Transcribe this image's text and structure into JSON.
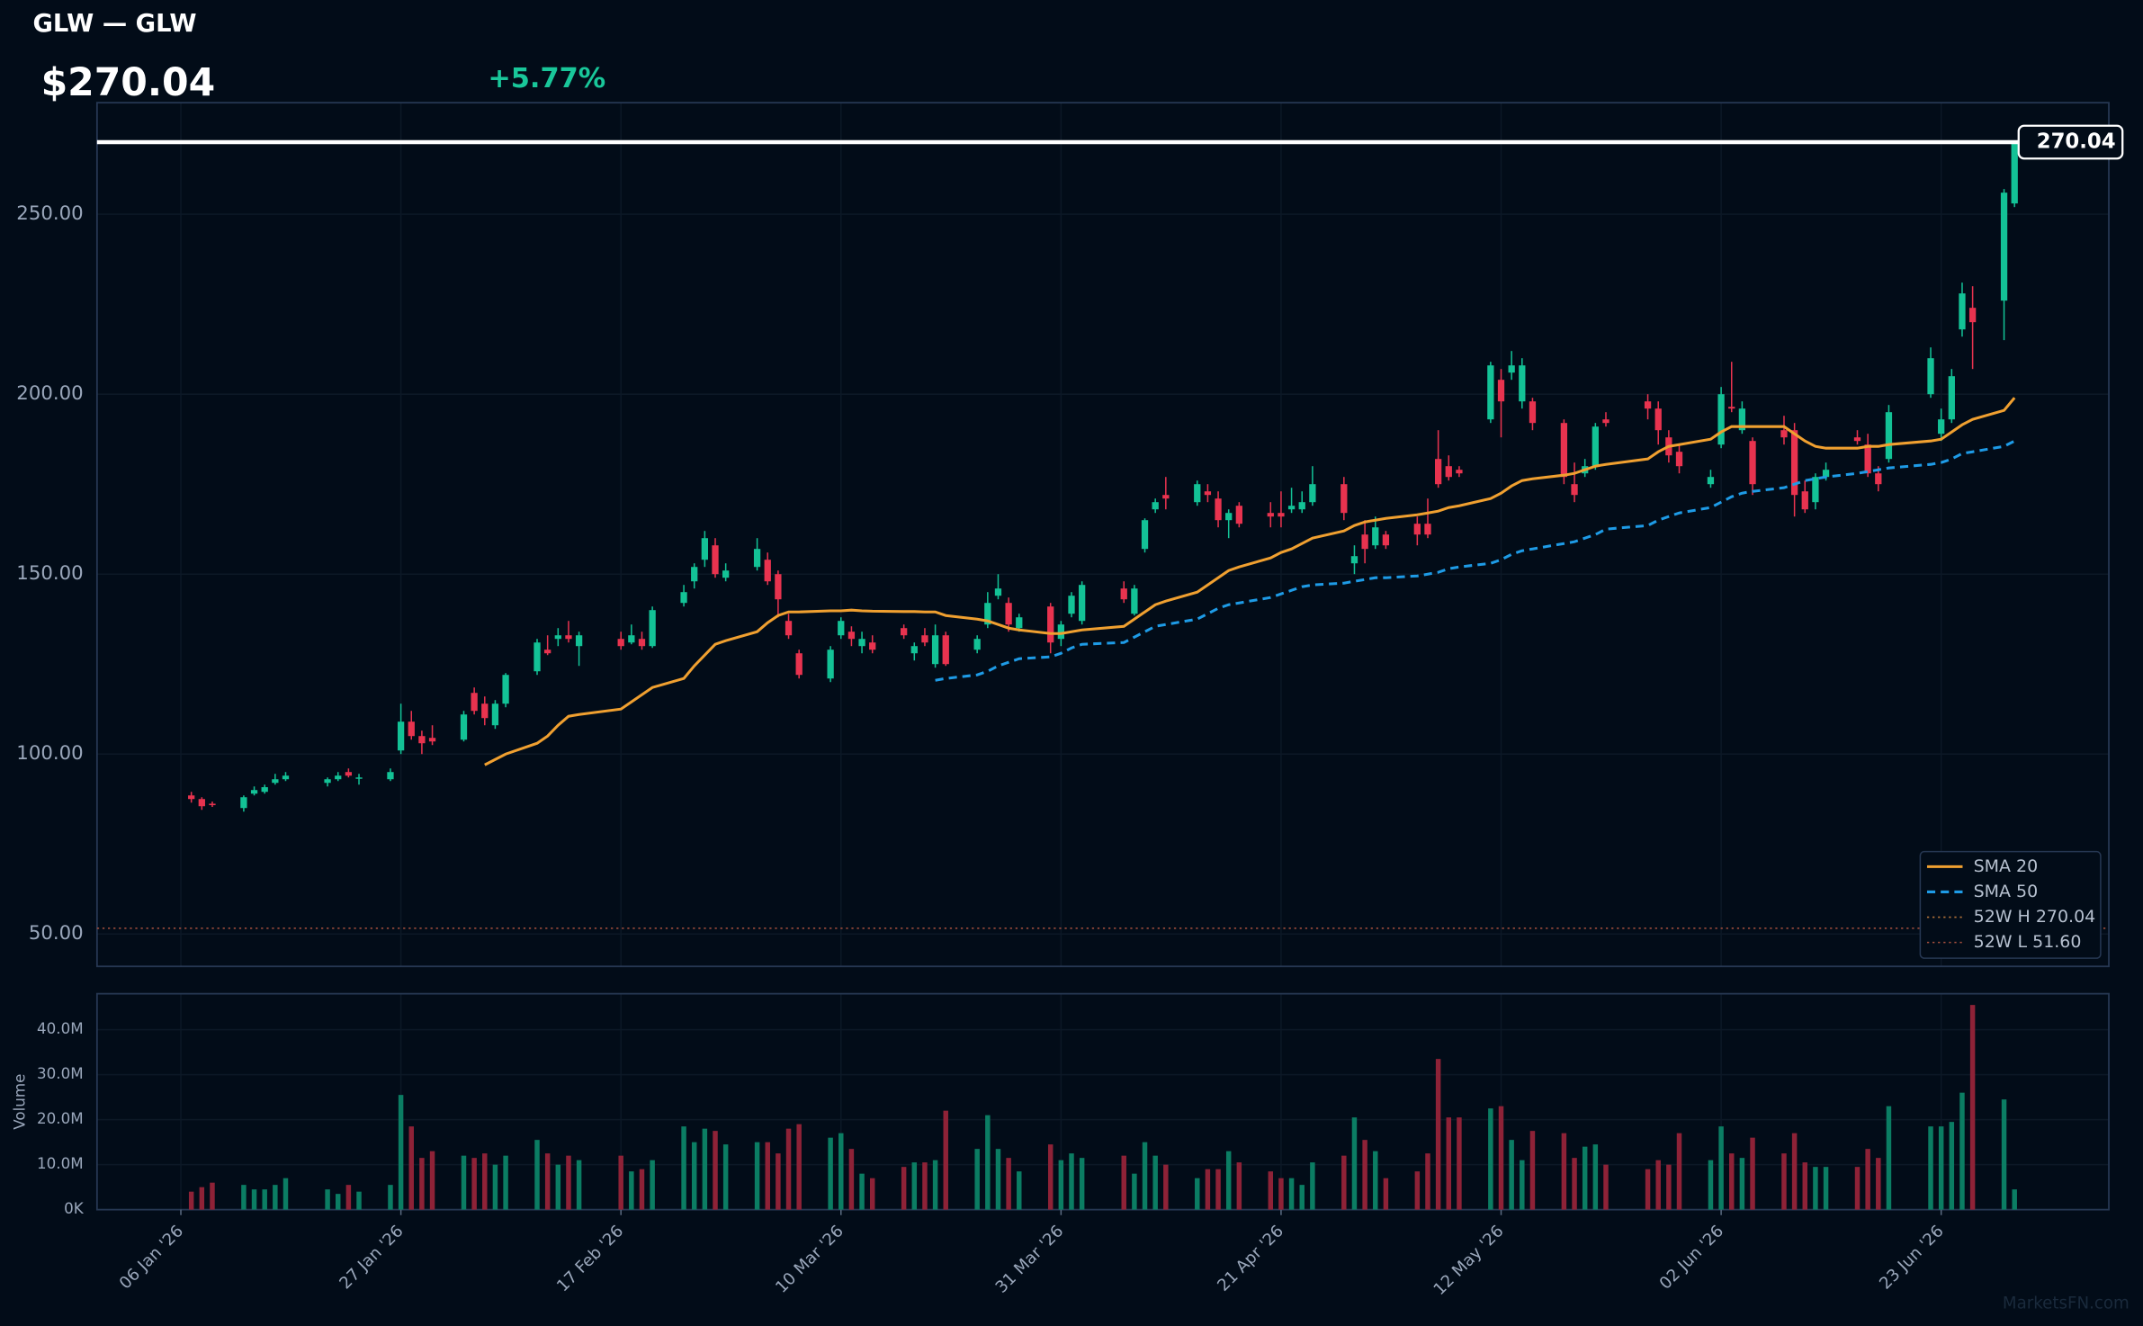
{
  "header": {
    "title": "GLW — GLW",
    "price": "$270.04",
    "change": {
      "value": 5.77,
      "label": "+5.77%"
    }
  },
  "watermark": "MarketsFN.com",
  "chart_data": {
    "type": "candlestick",
    "x": [
      "2026-01-07",
      "2026-01-08",
      "2026-01-09",
      "2026-01-12",
      "2026-01-13",
      "2026-01-14",
      "2026-01-15",
      "2026-01-16",
      "2026-01-20",
      "2026-01-21",
      "2026-01-22",
      "2026-01-23",
      "2026-01-26",
      "2026-01-27",
      "2026-01-28",
      "2026-01-29",
      "2026-01-30",
      "2026-02-02",
      "2026-02-03",
      "2026-02-04",
      "2026-02-05",
      "2026-02-06",
      "2026-02-09",
      "2026-02-10",
      "2026-02-11",
      "2026-02-12",
      "2026-02-13",
      "2026-02-17",
      "2026-02-18",
      "2026-02-19",
      "2026-02-20",
      "2026-02-23",
      "2026-02-24",
      "2026-02-25",
      "2026-02-26",
      "2026-02-27",
      "2026-03-02",
      "2026-03-03",
      "2026-03-04",
      "2026-03-05",
      "2026-03-06",
      "2026-03-09",
      "2026-03-10",
      "2026-03-11",
      "2026-03-12",
      "2026-03-13",
      "2026-03-16",
      "2026-03-17",
      "2026-03-18",
      "2026-03-19",
      "2026-03-20",
      "2026-03-23",
      "2026-03-24",
      "2026-03-25",
      "2026-03-26",
      "2026-03-27",
      "2026-03-30",
      "2026-03-31",
      "2026-04-01",
      "2026-04-02",
      "2026-04-06",
      "2026-04-07",
      "2026-04-08",
      "2026-04-09",
      "2026-04-10",
      "2026-04-13",
      "2026-04-14",
      "2026-04-15",
      "2026-04-16",
      "2026-04-17",
      "2026-04-20",
      "2026-04-21",
      "2026-04-22",
      "2026-04-23",
      "2026-04-24",
      "2026-04-27",
      "2026-04-28",
      "2026-04-29",
      "2026-04-30",
      "2026-05-01",
      "2026-05-04",
      "2026-05-05",
      "2026-05-06",
      "2026-05-07",
      "2026-05-08",
      "2026-05-11",
      "2026-05-12",
      "2026-05-13",
      "2026-05-14",
      "2026-05-15",
      "2026-05-18",
      "2026-05-19",
      "2026-05-20",
      "2026-05-21",
      "2026-05-22",
      "2026-05-26",
      "2026-05-27",
      "2026-05-28",
      "2026-05-29",
      "2026-06-01",
      "2026-06-02",
      "2026-06-03",
      "2026-06-04",
      "2026-06-05",
      "2026-06-08",
      "2026-06-09",
      "2026-06-10",
      "2026-06-11",
      "2026-06-12",
      "2026-06-15",
      "2026-06-16",
      "2026-06-17",
      "2026-06-18",
      "2026-06-22",
      "2026-06-23",
      "2026-06-24",
      "2026-06-25",
      "2026-06-26",
      "2026-06-29",
      "2026-06-30"
    ],
    "open": [
      88.5,
      87.5,
      86.2,
      85,
      89,
      89.5,
      92,
      93,
      92,
      93,
      95,
      93.2,
      93,
      101,
      109,
      105,
      104.5,
      104,
      117,
      114,
      108,
      114,
      123,
      129,
      132,
      133,
      130,
      132,
      131,
      132,
      130,
      142,
      148,
      154,
      158,
      149,
      152,
      154,
      150,
      137,
      128,
      121,
      133,
      134,
      130,
      131,
      135,
      128,
      133,
      125,
      133,
      129,
      136,
      144,
      142,
      135,
      141,
      132,
      139,
      137,
      146,
      139,
      157,
      168,
      172,
      170,
      173,
      171,
      165,
      169,
      167,
      167,
      168,
      168,
      170,
      175,
      153,
      161,
      158,
      161,
      164,
      164,
      182,
      180,
      179,
      193,
      204,
      206,
      198,
      198,
      192,
      175,
      178,
      180,
      193,
      198,
      196,
      188,
      184,
      175,
      186,
      196.5,
      190,
      187,
      190,
      190,
      173,
      170,
      177,
      188,
      186,
      178,
      182,
      200,
      189,
      193,
      218,
      224,
      226,
      253
    ],
    "high": [
      89.5,
      88,
      86.8,
      88.5,
      91,
      91.5,
      94.5,
      95,
      93.5,
      95,
      96,
      94.5,
      96,
      114,
      112,
      106.5,
      108,
      112,
      118.5,
      116,
      115,
      122.5,
      132,
      133,
      135,
      137,
      134,
      134,
      136,
      134,
      141,
      147,
      153,
      162,
      160,
      153,
      160,
      156,
      151,
      139,
      129,
      130,
      138,
      135.5,
      134,
      133,
      136,
      131,
      135,
      136,
      134,
      133,
      145,
      150,
      143.5,
      139,
      142,
      137,
      145,
      148,
      148,
      147,
      165.5,
      171,
      177,
      176,
      175,
      173,
      168,
      170,
      170,
      173,
      174,
      173,
      180,
      177,
      158,
      165,
      166,
      162,
      166,
      171,
      190,
      183,
      180,
      209,
      207,
      212,
      210,
      199,
      193,
      181,
      182,
      192,
      195,
      200,
      198,
      190,
      186,
      179,
      202,
      209,
      198,
      188,
      194,
      192,
      176,
      178,
      181,
      190,
      189,
      180,
      197,
      213,
      196,
      207,
      231,
      230,
      257,
      270.04
    ],
    "low": [
      86.5,
      84.5,
      85.3,
      84,
      88.5,
      89,
      91.5,
      92.5,
      91,
      92.5,
      93.5,
      91.5,
      92.5,
      100,
      104,
      100,
      102.5,
      103.5,
      111,
      108,
      107,
      113,
      122,
      127.5,
      130,
      131,
      124.5,
      129,
      130.5,
      129,
      129.5,
      141,
      146,
      152,
      149,
      148,
      151,
      147,
      138,
      132,
      121,
      120,
      132,
      130,
      128,
      128,
      132,
      126,
      130,
      124,
      124.5,
      128,
      135,
      143,
      134,
      134,
      128,
      130,
      138,
      136,
      142,
      138.5,
      156,
      167,
      168,
      169,
      170,
      163,
      160,
      163,
      163,
      163,
      167,
      167,
      169,
      165,
      150,
      153,
      157,
      157,
      158,
      160,
      174,
      176,
      177,
      192,
      188,
      204,
      196,
      190,
      175,
      170,
      177,
      179,
      191,
      193,
      186,
      181,
      178,
      174,
      185,
      195,
      189,
      172,
      186,
      166,
      167,
      168,
      176,
      186,
      177,
      173,
      181,
      199,
      187,
      192,
      216,
      207,
      215,
      252
    ],
    "close": [
      87.5,
      85.5,
      85.8,
      88,
      90,
      90.8,
      93,
      94,
      93,
      94,
      94,
      93.5,
      95,
      109,
      105,
      103,
      103.5,
      111,
      112,
      110,
      114,
      122,
      131,
      128,
      133,
      132,
      133,
      130,
      133,
      130,
      140,
      145,
      152,
      160,
      150,
      151,
      157,
      148,
      143,
      133,
      122,
      129,
      137,
      132,
      132,
      129,
      133,
      130,
      131,
      133,
      125,
      132,
      142,
      146,
      136,
      138,
      131,
      136,
      144,
      147,
      143,
      146,
      165,
      170,
      171,
      175,
      172,
      165,
      167,
      164,
      166,
      166,
      169,
      170,
      175,
      167,
      155,
      157,
      163,
      158,
      161,
      161,
      175,
      177,
      178,
      208,
      198,
      208,
      208,
      192,
      177,
      172,
      180,
      191,
      192,
      196,
      190,
      183,
      180,
      177,
      200,
      196,
      196,
      175,
      188,
      172,
      168,
      177,
      179,
      187,
      178,
      175,
      195,
      210,
      193,
      205,
      228,
      220,
      256,
      270.04
    ],
    "up_color": "#13c296",
    "down_color": "#e8334f",
    "xlim": [
      "2025-12-29",
      "2026-07-09"
    ],
    "xticks": [
      {
        "value": "2026-01-06",
        "label": "06 Jan '26"
      },
      {
        "value": "2026-01-27",
        "label": "27 Jan '26"
      },
      {
        "value": "2026-02-17",
        "label": "17 Feb '26"
      },
      {
        "value": "2026-03-10",
        "label": "10 Mar '26"
      },
      {
        "value": "2026-03-31",
        "label": "31 Mar '26"
      },
      {
        "value": "2026-04-21",
        "label": "21 Apr '26"
      },
      {
        "value": "2026-05-12",
        "label": "12 May '26"
      },
      {
        "value": "2026-06-02",
        "label": "02 Jun '26"
      },
      {
        "value": "2026-06-23",
        "label": "23 Jun '26"
      }
    ],
    "ylim": [
      41,
      281
    ],
    "yticks": [
      {
        "value": 50,
        "label": "50.00"
      },
      {
        "value": 100,
        "label": "100.00"
      },
      {
        "value": 150,
        "label": "150.00"
      },
      {
        "value": 200,
        "label": "200.00"
      },
      {
        "value": 250,
        "label": "250.00"
      }
    ],
    "grid": true,
    "legend": "lower right",
    "series": [
      {
        "name": "SMA 20",
        "color": "#f0a030",
        "style": "solid",
        "values": [
          null,
          null,
          null,
          null,
          null,
          null,
          null,
          null,
          null,
          null,
          null,
          null,
          null,
          null,
          null,
          null,
          null,
          null,
          null,
          97,
          98.5,
          100,
          103,
          105,
          108,
          110.5,
          111,
          112.5,
          114.5,
          116.5,
          118.5,
          121,
          124.5,
          127.5,
          130.5,
          131.5,
          134,
          136.5,
          138.5,
          139.5,
          139.5,
          139.8,
          139.8,
          140,
          139.8,
          139.7,
          139.6,
          139.6,
          139.5,
          139.5,
          138.5,
          137.5,
          137,
          136,
          135,
          134.5,
          133.5,
          133.5,
          134,
          134.5,
          135.5,
          137.5,
          139.5,
          141.5,
          142.5,
          145,
          147,
          149,
          151,
          152,
          154.5,
          156,
          157,
          158.5,
          160,
          162,
          163.5,
          164.5,
          165,
          165.5,
          166.5,
          167,
          167.5,
          168.5,
          169,
          171,
          172.5,
          174.5,
          176,
          176.5,
          177.5,
          178,
          179,
          180,
          180.5,
          182,
          184,
          185.5,
          186,
          187.5,
          189.5,
          191,
          191,
          191,
          191,
          189,
          187,
          185.5,
          185,
          185,
          185.5,
          185.5,
          186,
          187,
          187.5,
          189.5,
          191.5,
          193,
          195.5,
          199
        ]
      },
      {
        "name": "SMA 50",
        "color": "#1e9be6",
        "style": "dashed",
        "values": [
          null,
          null,
          null,
          null,
          null,
          null,
          null,
          null,
          null,
          null,
          null,
          null,
          null,
          null,
          null,
          null,
          null,
          null,
          null,
          null,
          null,
          null,
          null,
          null,
          null,
          null,
          null,
          null,
          null,
          null,
          null,
          null,
          null,
          null,
          null,
          null,
          null,
          null,
          null,
          null,
          null,
          null,
          null,
          null,
          null,
          null,
          null,
          null,
          null,
          120.5,
          121,
          122,
          123,
          124.5,
          125.5,
          126.5,
          127,
          128,
          129.5,
          130.5,
          131,
          132.5,
          134,
          135.5,
          136,
          137.5,
          139,
          140.5,
          141.5,
          142,
          143.5,
          144.5,
          145.5,
          146.5,
          147,
          147.5,
          148,
          148.5,
          149,
          149,
          149.5,
          150,
          150.5,
          151.5,
          152,
          153,
          154,
          155.5,
          156.5,
          157,
          158.5,
          159,
          160,
          161,
          162.5,
          163.5,
          165,
          166,
          167,
          168.5,
          170,
          171.5,
          172.5,
          173,
          174,
          175,
          176,
          176.5,
          177,
          178,
          178.5,
          179,
          179.5,
          180.5,
          181,
          182,
          183.5,
          184,
          185.5,
          187
        ]
      }
    ],
    "levels": [
      {
        "name": "52W H 270.04",
        "value": 270.04,
        "color": "#b5743a"
      },
      {
        "name": "52W L 51.60",
        "value": 51.6,
        "color": "#a8503e"
      }
    ],
    "last_price": 270.04,
    "volume": {
      "ylabel": "Volume",
      "up_color": "#0b7d63",
      "down_color": "#8e2237",
      "values": [
        4000000,
        5000000,
        6000000,
        5500000,
        4500000,
        4500000,
        5500000,
        7000000,
        4500000,
        3500000,
        5500000,
        4000000,
        5500000,
        25500000,
        18500000,
        11500000,
        13000000,
        12000000,
        11500000,
        12500000,
        10000000,
        12000000,
        15500000,
        12500000,
        10000000,
        12000000,
        11000000,
        12000000,
        8500000,
        9000000,
        11000000,
        18500000,
        15000000,
        18000000,
        17500000,
        14500000,
        15000000,
        15000000,
        12500000,
        18000000,
        19000000,
        16000000,
        17000000,
        13500000,
        8000000,
        7000000,
        9500000,
        10500000,
        10500000,
        11000000,
        22000000,
        13500000,
        21000000,
        13500000,
        11500000,
        8500000,
        14500000,
        11000000,
        12500000,
        11500000,
        12000000,
        8000000,
        15000000,
        12000000,
        10000000,
        7000000,
        9000000,
        9000000,
        13000000,
        10500000,
        8500000,
        7000000,
        7000000,
        5500000,
        10500000,
        12000000,
        20500000,
        15500000,
        13000000,
        7000000,
        8500000,
        12500000,
        33500000,
        20500000,
        20500000,
        22500000,
        23000000,
        15500000,
        11000000,
        17500000,
        17000000,
        11500000,
        14000000,
        14500000,
        10000000,
        9000000,
        11000000,
        10000000,
        17000000,
        11000000,
        18500000,
        12500000,
        11500000,
        16000000,
        12500000,
        17000000,
        10500000,
        9500000,
        9500000,
        9500000,
        13500000,
        11500000,
        23000000,
        18500000,
        18500000,
        19500000,
        26000000,
        45500000,
        24500000,
        4500000
      ],
      "ylim": [
        0,
        48000000
      ],
      "yticks": [
        {
          "value": 0,
          "label": "0K"
        },
        {
          "value": 10000000,
          "label": "10.0M"
        },
        {
          "value": 20000000,
          "label": "20.0M"
        },
        {
          "value": 30000000,
          "label": "30.0M"
        },
        {
          "value": 40000000,
          "label": "40.0M"
        }
      ]
    }
  }
}
